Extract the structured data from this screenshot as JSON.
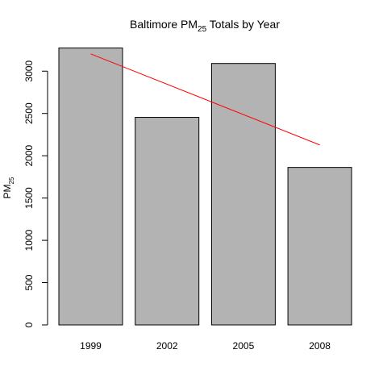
{
  "chart_data": {
    "type": "bar",
    "title": "Baltimore PM",
    "title_subscript": "25",
    "title_suffix": " Totals by Year",
    "ylabel": "PM",
    "ylabel_subscript": "25",
    "xlabel": "",
    "categories": [
      "1999",
      "2002",
      "2005",
      "2008"
    ],
    "values": [
      3274,
      2454,
      3091,
      1862
    ],
    "ylim": [
      0,
      3300
    ],
    "yticks": [
      0,
      500,
      1000,
      1500,
      2000,
      2500,
      3000
    ],
    "grid": false,
    "legend": "none",
    "bar_color": "#b3b3b3",
    "bar_border_color": "#000000",
    "trend_line": {
      "color": "#ff0000",
      "start_value": 3204,
      "end_value": 2128
    }
  }
}
